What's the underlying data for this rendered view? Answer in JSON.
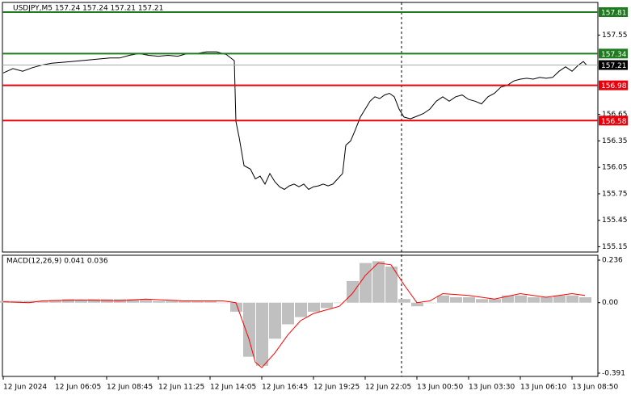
{
  "chart_data": [
    {
      "type": "line",
      "title": "USDJPY,M5  157.24 157.24 157.21 157.21",
      "xlim": [
        0,
        368
      ],
      "xticks": [
        {
          "value": 0,
          "label": "12 Jun 2024"
        },
        {
          "value": 32,
          "label": "12 Jun 06:05"
        },
        {
          "value": 64,
          "label": "12 Jun 08:45"
        },
        {
          "value": 96,
          "label": "12 Jun 11:25"
        },
        {
          "value": 128,
          "label": "12 Jun 14:05"
        },
        {
          "value": 160,
          "label": "12 Jun 16:45"
        },
        {
          "value": 192,
          "label": "12 Jun 19:25"
        },
        {
          "value": 224,
          "label": "12 Jun 22:05"
        },
        {
          "value": 256,
          "label": "13 Jun 00:50"
        },
        {
          "value": 288,
          "label": "13 Jun 03:30"
        },
        {
          "value": 320,
          "label": "13 Jun 06:10"
        },
        {
          "value": 352,
          "label": "13 Jun 08:50"
        }
      ],
      "ylim": [
        155.09,
        157.92
      ],
      "yticks": [
        157.55,
        156.65,
        156.35,
        156.05,
        155.75,
        155.45,
        155.15
      ],
      "series": [
        {
          "color": "#000000",
          "x": [
            0,
            6,
            12,
            18,
            24,
            30,
            36,
            42,
            48,
            54,
            60,
            66,
            72,
            78,
            84,
            90,
            96,
            102,
            108,
            114,
            120,
            126,
            132,
            138,
            143,
            144,
            146,
            149,
            153,
            156,
            159,
            162,
            165,
            168,
            171,
            174,
            177,
            180,
            183,
            186,
            189,
            192,
            195,
            198,
            201,
            204,
            207,
            210,
            212,
            215,
            218,
            221,
            224,
            227,
            230,
            233,
            236,
            239,
            242,
            245,
            248,
            252,
            256,
            260,
            264,
            268,
            272,
            276,
            280,
            284,
            288,
            292,
            296,
            300,
            304,
            308,
            312,
            316,
            320,
            324,
            328,
            332,
            336,
            340,
            344,
            348,
            352,
            356,
            359,
            361
          ],
          "values": [
            157.12,
            157.17,
            157.14,
            157.18,
            157.21,
            157.23,
            157.24,
            157.25,
            157.26,
            157.27,
            157.28,
            157.29,
            157.29,
            157.32,
            157.34,
            157.32,
            157.31,
            157.32,
            157.31,
            157.34,
            157.34,
            157.36,
            157.36,
            157.33,
            157.26,
            156.57,
            156.39,
            156.07,
            156.03,
            155.92,
            155.95,
            155.86,
            155.98,
            155.89,
            155.83,
            155.8,
            155.84,
            155.86,
            155.83,
            155.86,
            155.8,
            155.83,
            155.84,
            155.86,
            155.84,
            155.86,
            155.92,
            155.98,
            156.3,
            156.35,
            156.48,
            156.62,
            156.71,
            156.8,
            156.85,
            156.83,
            156.87,
            156.89,
            156.85,
            156.71,
            156.62,
            156.6,
            156.63,
            156.66,
            156.71,
            156.8,
            156.85,
            156.8,
            156.85,
            156.87,
            156.82,
            156.8,
            156.77,
            156.85,
            156.89,
            156.96,
            156.98,
            157.03,
            157.05,
            157.06,
            157.05,
            157.07,
            157.06,
            157.07,
            157.14,
            157.19,
            157.14,
            157.21,
            157.25,
            157.21
          ]
        }
      ],
      "levels": [
        {
          "value": 157.81,
          "color": "#1e7b1e"
        },
        {
          "value": 157.34,
          "color": "#1e7b1e"
        },
        {
          "value": 156.98,
          "color": "#e8000b"
        },
        {
          "value": 156.58,
          "color": "#e8000b"
        }
      ],
      "last": {
        "value": 157.21,
        "color": "#000000"
      }
    },
    {
      "type": "combo",
      "title": "MACD(12,26,9) 0.041 0.036",
      "xlim": [
        0,
        368
      ],
      "ylim": [
        -0.409,
        0.263
      ],
      "yticks": [
        0.236,
        {
          "value": 0,
          "label": "0.00"
        },
        -0.391
      ],
      "series": [
        {
          "type": "bar",
          "color": "#c0c0c0",
          "x": [
            0,
            8,
            16,
            24,
            32,
            40,
            48,
            56,
            64,
            72,
            80,
            88,
            96,
            104,
            112,
            120,
            128,
            136,
            144,
            152,
            160,
            168,
            176,
            184,
            192,
            200,
            208,
            216,
            224,
            232,
            240,
            248,
            256,
            264,
            272,
            280,
            288,
            296,
            304,
            312,
            320,
            328,
            336,
            344,
            352,
            360
          ],
          "values": [
            0.01,
            0.01,
            0.01,
            0.01,
            0.015,
            0.02,
            0.015,
            0.02,
            0.02,
            0.02,
            0.02,
            0.02,
            0.01,
            0.01,
            0.01,
            0.01,
            0.01,
            0.0,
            -0.05,
            -0.3,
            -0.35,
            -0.2,
            -0.12,
            -0.08,
            -0.05,
            -0.03,
            0.0,
            0.12,
            0.22,
            0.23,
            0.2,
            0.02,
            -0.02,
            0.0,
            0.04,
            0.03,
            0.03,
            0.02,
            0.02,
            0.04,
            0.04,
            0.03,
            0.03,
            0.04,
            0.04,
            0.03
          ]
        },
        {
          "type": "line",
          "color": "#ff0000",
          "x": [
            0,
            16,
            24,
            48,
            72,
            88,
            112,
            136,
            144,
            152,
            156,
            160,
            168,
            176,
            184,
            192,
            208,
            216,
            224,
            232,
            240,
            248,
            256,
            264,
            272,
            288,
            304,
            320,
            336,
            352,
            360
          ],
          "values": [
            0.005,
            0.0,
            0.01,
            0.015,
            0.01,
            0.02,
            0.01,
            0.01,
            0.0,
            -0.2,
            -0.33,
            -0.36,
            -0.28,
            -0.18,
            -0.1,
            -0.06,
            -0.02,
            0.05,
            0.15,
            0.22,
            0.21,
            0.1,
            0.0,
            0.01,
            0.05,
            0.04,
            0.02,
            0.05,
            0.03,
            0.05,
            0.04
          ]
        }
      ]
    }
  ]
}
